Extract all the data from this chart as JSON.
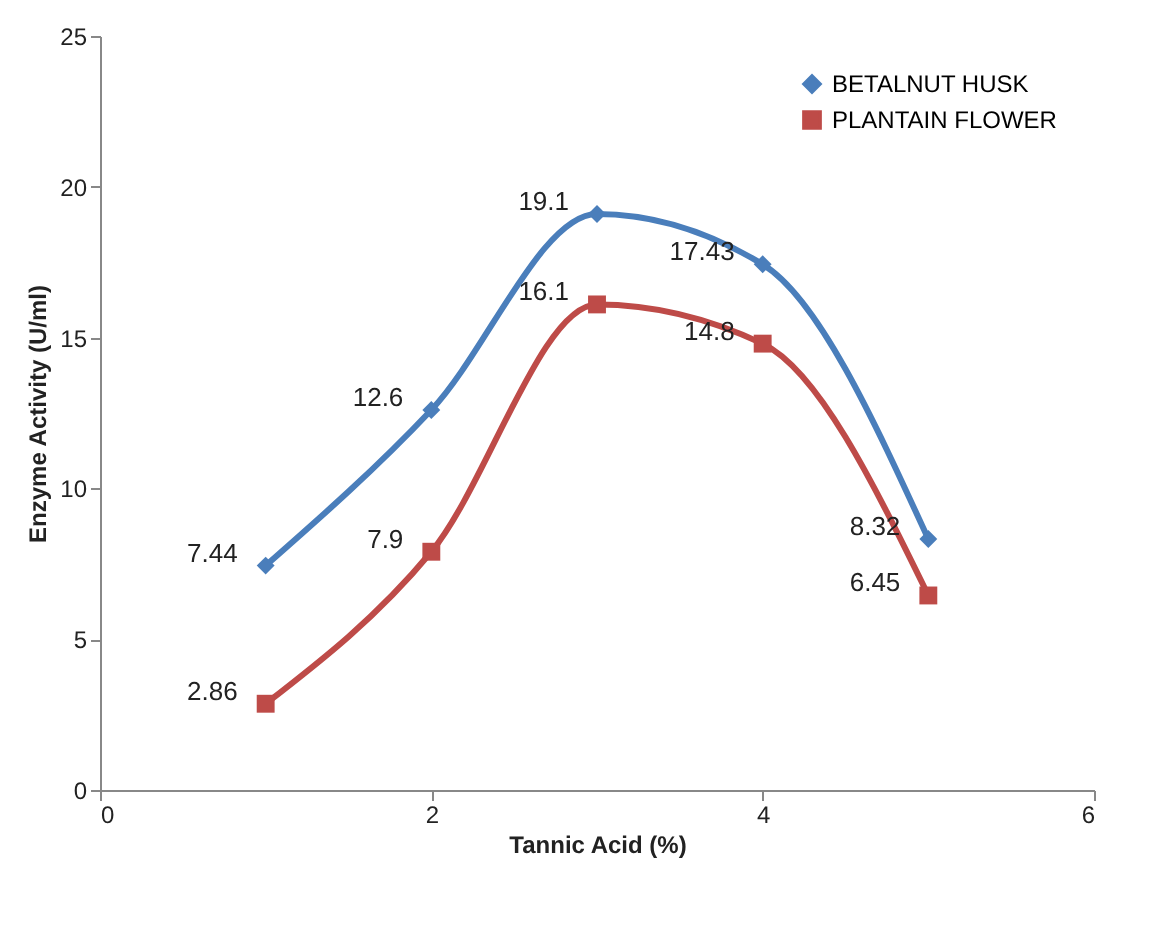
{
  "chart_data": {
    "type": "line",
    "xlabel": "Tannic Acid (%)",
    "ylabel": "Enzyme Activity (U/ml)",
    "x": [
      1,
      2,
      3,
      4,
      5
    ],
    "series": [
      {
        "name": "BETALNUT HUSK",
        "color": "#4a7ebb",
        "marker": "diamond",
        "values": [
          7.44,
          12.6,
          19.1,
          17.43,
          8.32
        ]
      },
      {
        "name": "PLANTAIN FLOWER",
        "color": "#be4b48",
        "marker": "square",
        "values": [
          2.86,
          7.9,
          16.1,
          14.8,
          6.45
        ]
      }
    ],
    "xlim": [
      0,
      6
    ],
    "xticks": [
      0,
      2,
      4,
      6
    ],
    "ylim": [
      0,
      25
    ],
    "yticks": [
      0,
      5,
      10,
      15,
      20,
      25
    ],
    "grid": false,
    "legend": "top right",
    "data_labels": true
  }
}
